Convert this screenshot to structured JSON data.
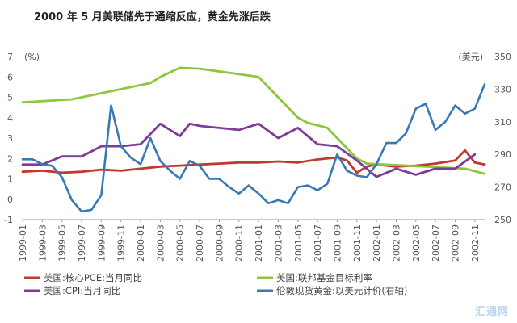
{
  "chart_data": {
    "type": "line",
    "title": "2000 年 5 月美联储先于通缩反应，黄金先涨后跌",
    "left_axis": {
      "unit": "(%)",
      "ylim": [
        -1,
        7
      ],
      "ticks": [
        -1,
        0,
        1,
        2,
        3,
        4,
        5,
        6,
        7
      ]
    },
    "right_axis": {
      "unit": "(美元)",
      "ylim": [
        250,
        350
      ],
      "ticks": [
        250,
        270,
        290,
        310,
        330,
        350
      ]
    },
    "x_range": [
      "1999-01",
      "2002-12"
    ],
    "x_tick_labels": [
      "1999-01",
      "1999-03",
      "1999-05",
      "1999-07",
      "1999-09",
      "1999-11",
      "2000-01",
      "2000-03",
      "2000-05",
      "2000-07",
      "2000-09",
      "2000-11",
      "2001-01",
      "2001-03",
      "2001-05",
      "2001-07",
      "2001-09",
      "2001-11",
      "2002-01",
      "2002-03",
      "2002-05",
      "2002-07",
      "2002-09",
      "2002-11"
    ],
    "grid": false,
    "legend_position": "bottom",
    "series": [
      {
        "name": "美国:核心PCE:当月同比",
        "axis": "left",
        "color": "#c0392b",
        "points": [
          [
            "1999-01",
            1.35
          ],
          [
            "1999-03",
            1.4
          ],
          [
            "1999-05",
            1.3
          ],
          [
            "1999-07",
            1.35
          ],
          [
            "1999-09",
            1.45
          ],
          [
            "1999-11",
            1.4
          ],
          [
            "2000-01",
            1.5
          ],
          [
            "2000-03",
            1.6
          ],
          [
            "2000-05",
            1.65
          ],
          [
            "2000-07",
            1.7
          ],
          [
            "2000-09",
            1.75
          ],
          [
            "2000-11",
            1.8
          ],
          [
            "2001-01",
            1.8
          ],
          [
            "2001-03",
            1.85
          ],
          [
            "2001-05",
            1.8
          ],
          [
            "2001-07",
            1.95
          ],
          [
            "2001-09",
            2.05
          ],
          [
            "2001-10",
            1.9
          ],
          [
            "2001-11",
            1.3
          ],
          [
            "2001-12",
            1.6
          ],
          [
            "2002-01",
            1.7
          ],
          [
            "2002-03",
            1.6
          ],
          [
            "2002-05",
            1.65
          ],
          [
            "2002-07",
            1.75
          ],
          [
            "2002-09",
            1.9
          ],
          [
            "2002-10",
            2.4
          ],
          [
            "2002-11",
            1.8
          ],
          [
            "2002-12",
            1.7
          ]
        ]
      },
      {
        "name": "美国:联邦基金目标利率",
        "axis": "left",
        "color": "#8dc63f",
        "points": [
          [
            "1999-01",
            4.75
          ],
          [
            "1999-06",
            4.9
          ],
          [
            "1999-08",
            5.1
          ],
          [
            "1999-11",
            5.4
          ],
          [
            "2000-02",
            5.7
          ],
          [
            "2000-03",
            6.0
          ],
          [
            "2000-05",
            6.45
          ],
          [
            "2000-07",
            6.4
          ],
          [
            "2001-01",
            6.0
          ],
          [
            "2001-02",
            5.5
          ],
          [
            "2001-03",
            5.0
          ],
          [
            "2001-04",
            4.5
          ],
          [
            "2001-05",
            4.0
          ],
          [
            "2001-06",
            3.75
          ],
          [
            "2001-08",
            3.5
          ],
          [
            "2001-09",
            3.0
          ],
          [
            "2001-10",
            2.5
          ],
          [
            "2001-11",
            2.0
          ],
          [
            "2001-12",
            1.75
          ],
          [
            "2002-10",
            1.5
          ],
          [
            "2002-12",
            1.25
          ]
        ]
      },
      {
        "name": "美国:CPI:当月同比",
        "axis": "left",
        "color": "#7d3c98",
        "points": [
          [
            "1999-01",
            1.7
          ],
          [
            "1999-03",
            1.7
          ],
          [
            "1999-05",
            2.1
          ],
          [
            "1999-07",
            2.1
          ],
          [
            "1999-09",
            2.6
          ],
          [
            "1999-11",
            2.6
          ],
          [
            "2000-01",
            2.7
          ],
          [
            "2000-03",
            3.7
          ],
          [
            "2000-05",
            3.1
          ],
          [
            "2000-06",
            3.7
          ],
          [
            "2000-07",
            3.6
          ],
          [
            "2000-09",
            3.5
          ],
          [
            "2000-11",
            3.4
          ],
          [
            "2001-01",
            3.7
          ],
          [
            "2001-03",
            3.0
          ],
          [
            "2001-05",
            3.5
          ],
          [
            "2001-07",
            2.7
          ],
          [
            "2001-09",
            2.6
          ],
          [
            "2001-11",
            1.9
          ],
          [
            "2002-01",
            1.1
          ],
          [
            "2002-03",
            1.5
          ],
          [
            "2002-05",
            1.2
          ],
          [
            "2002-07",
            1.5
          ],
          [
            "2002-09",
            1.5
          ],
          [
            "2002-11",
            2.2
          ]
        ]
      },
      {
        "name": "伦敦现货黄金:以美元计价(右轴)",
        "axis": "right",
        "color": "#3a78b5",
        "points": [
          [
            "1999-01",
            287
          ],
          [
            "1999-02",
            287
          ],
          [
            "1999-03",
            284
          ],
          [
            "1999-04",
            283
          ],
          [
            "1999-05",
            276
          ],
          [
            "1999-06",
            262
          ],
          [
            "1999-07",
            255
          ],
          [
            "1999-08",
            256
          ],
          [
            "1999-09",
            265
          ],
          [
            "1999-10",
            320
          ],
          [
            "1999-11",
            295
          ],
          [
            "1999-12",
            288
          ],
          [
            "2000-01",
            284
          ],
          [
            "2000-02",
            300
          ],
          [
            "2000-03",
            286
          ],
          [
            "2000-04",
            280
          ],
          [
            "2000-05",
            275
          ],
          [
            "2000-06",
            286
          ],
          [
            "2000-07",
            283
          ],
          [
            "2000-08",
            275
          ],
          [
            "2000-09",
            275
          ],
          [
            "2000-10",
            270
          ],
          [
            "2000-11",
            266
          ],
          [
            "2000-12",
            271
          ],
          [
            "2001-01",
            266
          ],
          [
            "2001-02",
            260
          ],
          [
            "2001-03",
            262
          ],
          [
            "2001-04",
            260
          ],
          [
            "2001-05",
            270
          ],
          [
            "2001-06",
            271
          ],
          [
            "2001-07",
            268
          ],
          [
            "2001-08",
            272
          ],
          [
            "2001-09",
            290
          ],
          [
            "2001-10",
            280
          ],
          [
            "2001-11",
            277
          ],
          [
            "2001-12",
            276
          ],
          [
            "2002-01",
            284
          ],
          [
            "2002-02",
            297
          ],
          [
            "2002-03",
            297
          ],
          [
            "2002-04",
            303
          ],
          [
            "2002-05",
            318
          ],
          [
            "2002-06",
            321
          ],
          [
            "2002-07",
            305
          ],
          [
            "2002-08",
            310
          ],
          [
            "2002-09",
            320
          ],
          [
            "2002-10",
            315
          ],
          [
            "2002-11",
            318
          ],
          [
            "2002-12",
            333
          ]
        ]
      }
    ]
  },
  "watermark": "汇通网"
}
